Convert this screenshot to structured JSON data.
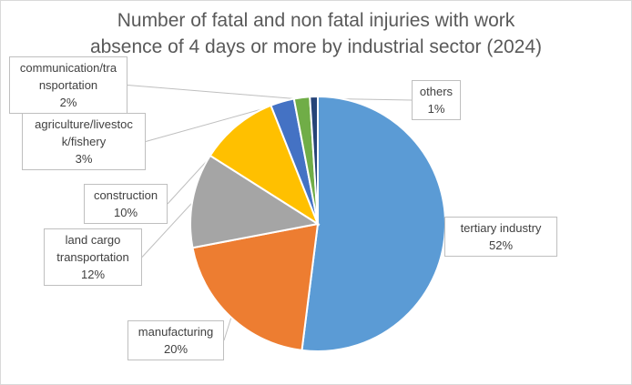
{
  "chart_data": {
    "type": "pie",
    "title_lines": [
      "Number of fatal and non fatal injuries with work",
      "absence of 4 days or more by industrial sector (2024)"
    ],
    "slices": [
      {
        "name": "tertiary industry",
        "value": 52,
        "label": "52%",
        "color": "#5b9bd5"
      },
      {
        "name": "manufacturing",
        "value": 20,
        "label": "20%",
        "color": "#ed7d31"
      },
      {
        "name": "land cargo transportation",
        "value": 12,
        "label": "12%",
        "color": "#a5a5a5"
      },
      {
        "name": "construction",
        "value": 10,
        "label": "10%",
        "color": "#ffc000"
      },
      {
        "name": "agriculture/livestock/fishery",
        "value": 3,
        "label": "3%",
        "color": "#4472c4"
      },
      {
        "name": "communication/transportation",
        "value": 2,
        "label": "2%",
        "color": "#70ad47"
      },
      {
        "name": "others",
        "value": 1,
        "label": "1%",
        "color": "#264478"
      }
    ],
    "legend": "none",
    "data_labels": "callouts"
  }
}
